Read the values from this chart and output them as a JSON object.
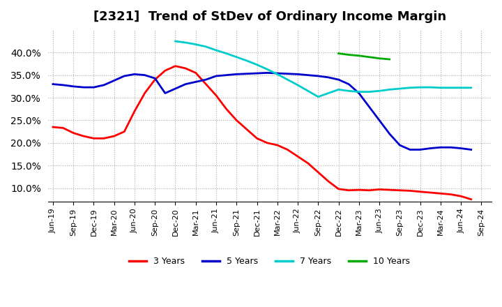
{
  "title": "[2321]  Trend of StDev of Ordinary Income Margin",
  "ylim": [
    0.07,
    0.45
  ],
  "yticks": [
    0.1,
    0.15,
    0.2,
    0.25,
    0.3,
    0.35,
    0.4
  ],
  "background_color": "#ffffff",
  "grid_color": "#aaaaaa",
  "series": {
    "3 Years": {
      "color": "#ff0000",
      "x": [
        0,
        1,
        2,
        3,
        4,
        5,
        6,
        7,
        8,
        9,
        10,
        11,
        12,
        13,
        14,
        15,
        16,
        17,
        18,
        19,
        20,
        21,
        22,
        23,
        24,
        25,
        26,
        27,
        28,
        29,
        30,
        31,
        32,
        33,
        34,
        35,
        36,
        37,
        38,
        39,
        40,
        41
      ],
      "y": [
        0.235,
        0.233,
        0.222,
        0.215,
        0.21,
        0.21,
        0.215,
        0.225,
        0.27,
        0.31,
        0.34,
        0.36,
        0.37,
        0.365,
        0.355,
        0.33,
        0.305,
        0.275,
        0.25,
        0.23,
        0.21,
        0.2,
        0.195,
        0.185,
        0.17,
        0.155,
        0.135,
        0.115,
        0.098,
        0.095,
        0.096,
        0.095,
        0.097,
        0.096,
        0.095,
        0.094,
        0.092,
        0.09,
        0.088,
        0.086,
        0.082,
        0.075
      ]
    },
    "5 Years": {
      "color": "#0000cc",
      "x": [
        0,
        1,
        2,
        3,
        4,
        5,
        6,
        7,
        8,
        9,
        10,
        11,
        12,
        13,
        14,
        15,
        16,
        17,
        18,
        19,
        20,
        21,
        22,
        23,
        24,
        25,
        26,
        27,
        28,
        29,
        30,
        31,
        32,
        33,
        34,
        35,
        36,
        37,
        38,
        39,
        40,
        41
      ],
      "y": [
        0.33,
        0.328,
        0.325,
        0.323,
        0.323,
        0.328,
        0.338,
        0.348,
        0.352,
        0.35,
        0.343,
        0.31,
        0.32,
        0.33,
        0.335,
        0.34,
        0.348,
        0.35,
        0.352,
        0.353,
        0.354,
        0.355,
        0.354,
        0.353,
        0.352,
        0.35,
        0.348,
        0.345,
        0.34,
        0.33,
        0.31,
        0.28,
        0.25,
        0.22,
        0.195,
        0.185,
        0.185,
        0.188,
        0.19,
        0.19,
        0.188,
        0.185
      ]
    },
    "7 Years": {
      "color": "#00cccc",
      "x": [
        12,
        13,
        14,
        15,
        16,
        17,
        18,
        19,
        20,
        21,
        22,
        23,
        24,
        25,
        26,
        27,
        28,
        29,
        30,
        31,
        32,
        33,
        34,
        35,
        36,
        37,
        38,
        39,
        40,
        41
      ],
      "y": [
        0.425,
        0.422,
        0.418,
        0.413,
        0.405,
        0.398,
        0.39,
        0.382,
        0.373,
        0.363,
        0.352,
        0.34,
        0.328,
        0.315,
        0.302,
        0.31,
        0.318,
        0.315,
        0.313,
        0.313,
        0.315,
        0.318,
        0.32,
        0.322,
        0.323,
        0.323,
        0.322,
        0.322,
        0.322,
        0.322
      ]
    },
    "10 Years": {
      "color": "#00aa00",
      "x": [
        28,
        29,
        30,
        31,
        32,
        33
      ],
      "y": [
        0.398,
        0.395,
        0.393,
        0.39,
        0.387,
        0.385
      ]
    }
  },
  "xtick_labels": [
    "Jun-19",
    "Sep-19",
    "Dec-19",
    "Mar-20",
    "Jun-20",
    "Sep-20",
    "Dec-20",
    "Mar-21",
    "Jun-21",
    "Sep-21",
    "Dec-21",
    "Mar-22",
    "Jun-22",
    "Sep-22",
    "Dec-22",
    "Mar-23",
    "Jun-23",
    "Sep-23",
    "Dec-23",
    "Mar-24",
    "Jun-24",
    "Sep-24"
  ],
  "legend_labels": [
    "3 Years",
    "5 Years",
    "7 Years",
    "10 Years"
  ],
  "legend_colors": [
    "#ff0000",
    "#0000cc",
    "#00cccc",
    "#00aa00"
  ]
}
